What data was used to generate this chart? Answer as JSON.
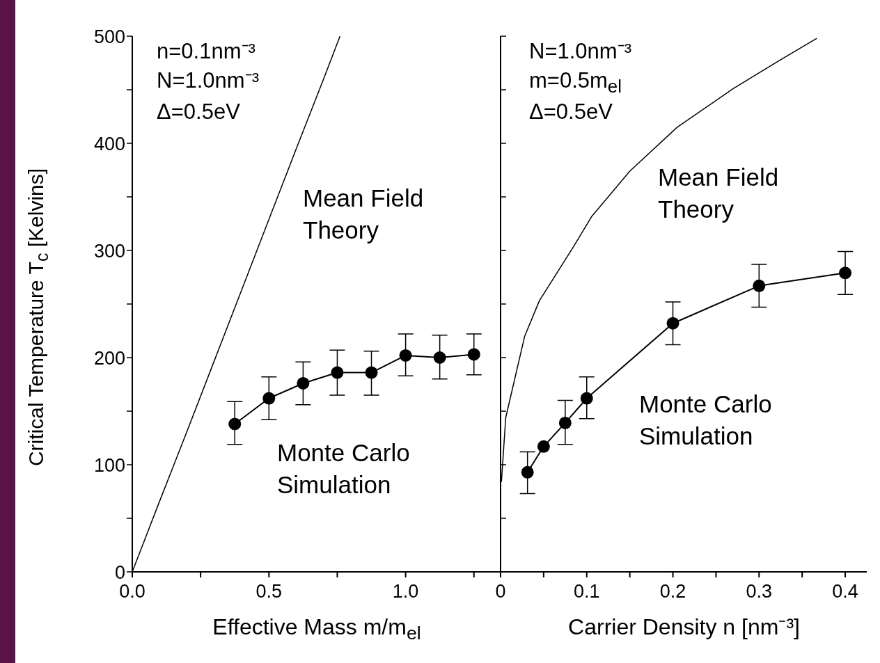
{
  "chart_data": [
    {
      "type": "line",
      "xlabel": "Effective Mass m/m$_{el}$",
      "ylabel": "Critical Temperature T$_{c}$ [Kelvins]",
      "xlim": [
        0,
        1.35
      ],
      "xticks": [
        {
          "value": 0,
          "label": "0.0"
        },
        {
          "value": 0.25,
          "label": null
        },
        {
          "value": 0.5,
          "label": "0.5"
        },
        {
          "value": 0.75,
          "label": null
        },
        {
          "value": 1,
          "label": "1.0"
        },
        {
          "value": 1.25,
          "label": null
        }
      ],
      "ylim": [
        0,
        500
      ],
      "yticks": [
        0,
        {
          "value": 50,
          "label": null
        },
        100,
        {
          "value": 150,
          "label": null
        },
        200,
        {
          "value": 250,
          "label": null
        },
        300,
        {
          "value": 350,
          "label": null
        },
        400,
        {
          "value": 450,
          "label": null
        },
        500
      ],
      "annotations": [
        "n=0.1nm⁻³",
        "N=1.0nm⁻³",
        "Δ=0.5eV"
      ],
      "line_style": "solid",
      "series": [
        {
          "name": "Mean Field Theory",
          "color": "#000000",
          "marker": "none",
          "x": [
            0,
            0.1,
            0.2,
            0.3,
            0.4,
            0.5,
            0.6,
            0.7,
            0.76
          ],
          "values": [
            0,
            66,
            131,
            197,
            263,
            329,
            395,
            460,
            500
          ]
        },
        {
          "name": "Monte Carlo Simulation",
          "color": "#000000",
          "marker": "circle",
          "x": [
            0.375,
            0.5,
            0.625,
            0.75,
            0.875,
            1.0,
            1.125,
            1.25
          ],
          "values": [
            138,
            162,
            176,
            186,
            186,
            202,
            200,
            203
          ],
          "errors": [
            [
              119,
              159
            ],
            [
              142,
              182
            ],
            [
              156,
              196
            ],
            [
              165,
              207
            ],
            [
              165,
              206
            ],
            [
              183,
              222
            ],
            [
              180,
              221
            ],
            [
              184,
              222
            ]
          ]
        }
      ]
    },
    {
      "type": "line",
      "xlabel": "Carrier Density n [nm⁻³]",
      "xlim": [
        0,
        0.425
      ],
      "xticks": [
        0,
        {
          "value": 0.05,
          "label": null
        },
        0.1,
        {
          "value": 0.15,
          "label": null
        },
        0.2,
        {
          "value": 0.25,
          "label": null
        },
        0.3,
        {
          "value": 0.35,
          "label": null
        },
        0.4
      ],
      "ylim": [
        0,
        500
      ],
      "yticks": [
        0,
        50,
        100,
        150,
        200,
        250,
        300,
        350,
        400,
        450,
        500
      ],
      "tick_labels": "x",
      "annotations": [
        "N=1.0nm⁻³",
        "m=0.5m$_{el}$",
        "Δ=0.5eV"
      ],
      "line_style": "solid",
      "series": [
        {
          "name": "Mean Field Theory",
          "color": "#000000",
          "marker": "none",
          "x": [
            0.001,
            0.006,
            0.028,
            0.045,
            0.085,
            0.106,
            0.15,
            0.205,
            0.27,
            0.325,
            0.367
          ],
          "values": [
            84,
            144,
            220,
            253,
            304,
            332,
            374,
            415,
            451,
            478,
            498
          ]
        },
        {
          "name": "Monte Carlo Simulation",
          "color": "#000000",
          "marker": "circle",
          "x": [
            0.03125,
            0.05,
            0.075,
            0.1,
            0.2,
            0.3,
            0.4
          ],
          "values": [
            93,
            117,
            139,
            162,
            232,
            267,
            279
          ],
          "errors": [
            [
              73,
              112
            ],
            null,
            [
              119,
              160
            ],
            [
              143,
              182
            ],
            [
              212,
              252
            ],
            [
              247,
              287
            ],
            [
              259,
              299
            ]
          ]
        }
      ]
    }
  ]
}
